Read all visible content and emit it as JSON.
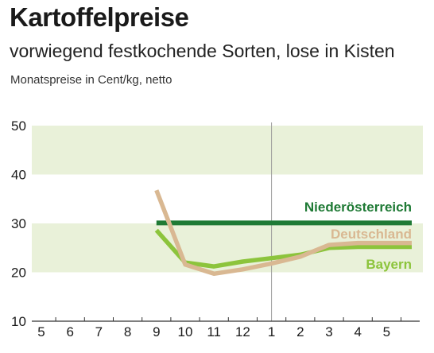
{
  "title": "Kartoffelpreise",
  "subtitle": "vorwiegend festkochende Sorten, lose in Kisten",
  "unit_note": "Monatspreise in Cent/kg, netto",
  "colors": {
    "band": "#e9f1d9",
    "niederoesterreich": "#1f7a35",
    "deutschland": "#d9b892",
    "bayern": "#8cc43c",
    "axis": "#333333",
    "divider": "#9a9a9a"
  },
  "chart_data": {
    "type": "line",
    "categories": [
      "5",
      "6",
      "7",
      "8",
      "9",
      "10",
      "11",
      "12",
      "1",
      "2",
      "3",
      "4",
      "5"
    ],
    "ylim": [
      10,
      50
    ],
    "yticks": [
      "10",
      "20",
      "30",
      "40",
      "50"
    ],
    "grid": "shaded bands 20–30 and 40–50",
    "divider_after_category": "1",
    "series": [
      {
        "name": "Niederösterreich",
        "color_key": "niederoesterreich",
        "values": [
          null,
          null,
          null,
          null,
          30.1,
          30.1,
          30.1,
          30.1,
          30.1,
          30.1,
          30.1,
          30.1,
          30.1
        ]
      },
      {
        "name": "Deutschland",
        "color_key": "deutschland",
        "values": [
          null,
          null,
          null,
          null,
          36.8,
          21.6,
          19.7,
          20.6,
          21.8,
          23.2,
          25.6,
          26.0,
          26.0
        ]
      },
      {
        "name": "Bayern",
        "color_key": "bayern",
        "values": [
          null,
          null,
          null,
          null,
          28.6,
          22.0,
          21.2,
          22.2,
          22.9,
          23.6,
          25.0,
          25.2,
          25.2
        ]
      }
    ]
  }
}
